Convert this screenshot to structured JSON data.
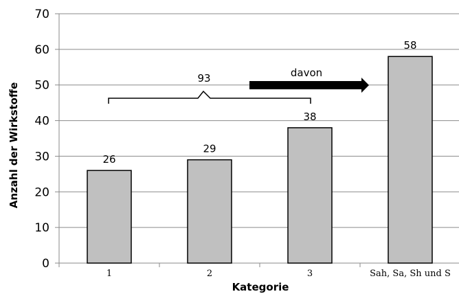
{
  "chart_data": {
    "type": "bar",
    "categories": [
      "1",
      "2",
      "3",
      "Sah, Sa, Sh und S"
    ],
    "values": [
      26,
      29,
      38,
      58
    ],
    "title": "",
    "xlabel": "Kategorie",
    "ylabel": "Anzahl der Wirkstoffe",
    "ylim": [
      0,
      70
    ],
    "yticks": [
      0,
      10,
      20,
      30,
      40,
      50,
      60,
      70
    ],
    "grid": true,
    "legend": "none",
    "annotations": {
      "bracket_total": "93",
      "arrow_label": "davon"
    },
    "colors": {
      "bar_fill": "#c0c0c0",
      "bar_stroke": "#000000",
      "grid": "#8a8a8a",
      "arrow": "#000000"
    }
  }
}
